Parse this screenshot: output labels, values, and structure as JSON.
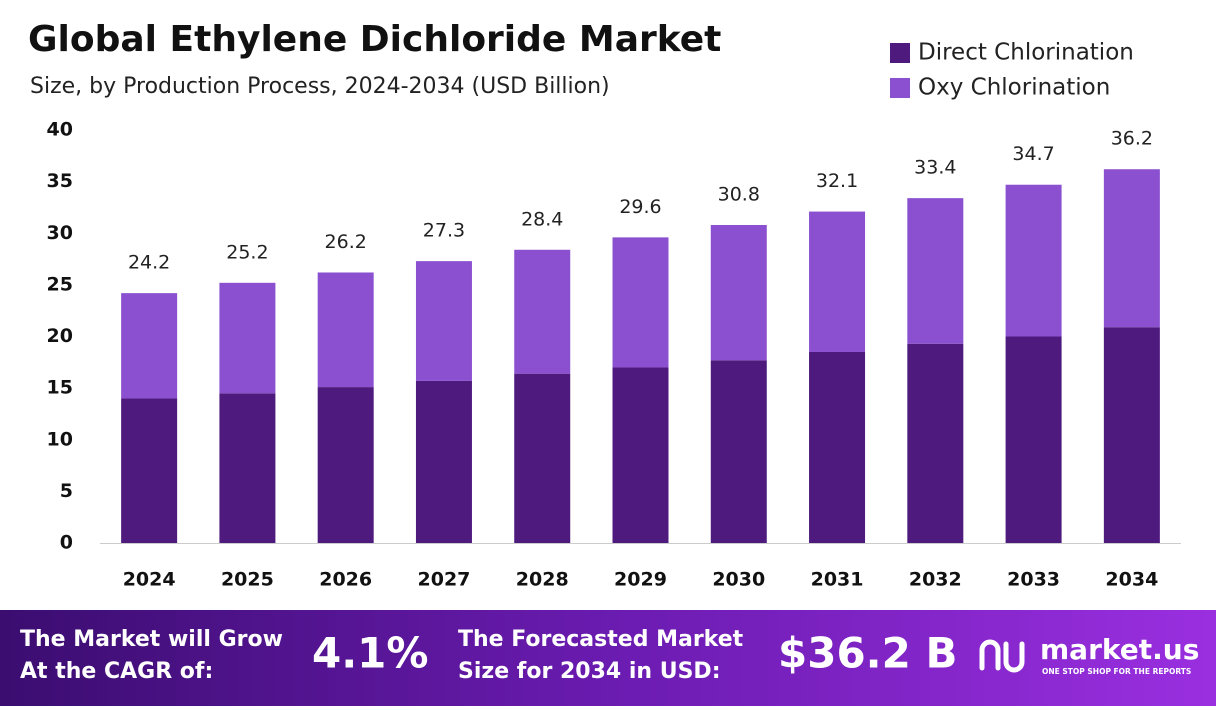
{
  "chart_data": {
    "type": "stacked-bar",
    "title": "Global Ethylene Dichloride Market",
    "subtitle": "Size, by Production Process, 2024-2034 (USD Billion)",
    "categories": [
      "2024",
      "2025",
      "2026",
      "2027",
      "2028",
      "2029",
      "2030",
      "2031",
      "2032",
      "2033",
      "2034"
    ],
    "series": [
      {
        "name": "Direct Chlorination",
        "color": "#4f1a7e",
        "values": [
          14.0,
          14.5,
          15.1,
          15.7,
          16.4,
          17.0,
          17.7,
          18.5,
          19.3,
          20.0,
          20.9
        ]
      },
      {
        "name": "Oxy Chlorination",
        "color": "#8b50d0",
        "values": [
          10.2,
          10.7,
          11.1,
          11.6,
          12.0,
          12.6,
          13.1,
          13.6,
          14.1,
          14.7,
          15.3
        ]
      }
    ],
    "totals": [
      24.2,
      25.2,
      26.2,
      27.3,
      28.4,
      29.6,
      30.8,
      32.1,
      33.4,
      34.7,
      36.2
    ],
    "ylim": [
      0,
      40
    ],
    "yticks": [
      0,
      5,
      10,
      15,
      20,
      25,
      30,
      35,
      40
    ],
    "grid": false,
    "legend": "top-right"
  },
  "footer": {
    "cagr_label": [
      "The Market will Grow",
      "At the CAGR of:"
    ],
    "cagr_value": "4.1%",
    "forecast_label": [
      "The Forecasted Market",
      "Size for 2034 in USD:"
    ],
    "forecast_value": "$36.2 B",
    "brand": "market.us",
    "tagline": "ONE STOP SHOP FOR THE REPORTS"
  }
}
